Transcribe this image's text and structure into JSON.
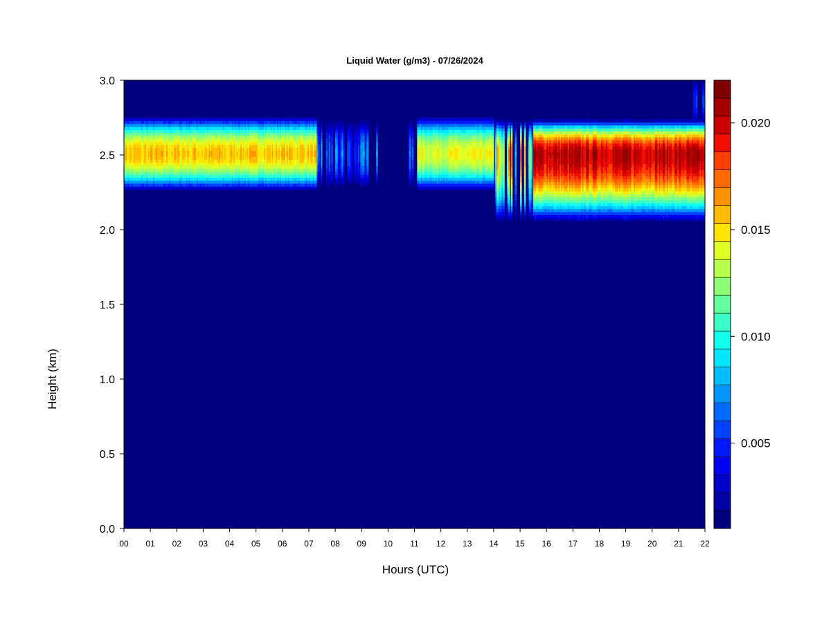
{
  "chart_data": {
    "type": "heatmap",
    "title": "Liquid Water (g/m3) - 07/26/2024",
    "xlabel": "Hours (UTC)",
    "ylabel": "Height (km)",
    "xlim": [
      0,
      22
    ],
    "ylim": [
      0.0,
      3.0
    ],
    "x_ticks": [
      "00",
      "01",
      "02",
      "03",
      "04",
      "05",
      "06",
      "07",
      "08",
      "09",
      "10",
      "11",
      "12",
      "13",
      "14",
      "15",
      "16",
      "17",
      "18",
      "19",
      "20",
      "21",
      "22"
    ],
    "y_ticks": [
      "0.0",
      "0.5",
      "1.0",
      "1.5",
      "2.0",
      "2.5",
      "3.0"
    ],
    "colorbar": {
      "range": [
        0.001,
        0.022
      ],
      "ticks": [
        0.005,
        0.01,
        0.015,
        0.02
      ],
      "tick_labels": [
        "0.005",
        "0.010",
        "0.015",
        "0.020"
      ],
      "levels": 21,
      "colors": [
        "#00007f",
        "#0000a6",
        "#0000cc",
        "#0000f2",
        "#0019ff",
        "#0042ff",
        "#006bff",
        "#0095ff",
        "#00beff",
        "#00e8ff",
        "#12fff0",
        "#3bffc7",
        "#64ff9e",
        "#8dff75",
        "#b7ff4b",
        "#e0ff22",
        "#ffe500",
        "#ffbc00",
        "#ff9200",
        "#ff6900",
        "#ff3f00",
        "#f20d00",
        "#cc0000",
        "#a50000",
        "#7f0000"
      ]
    },
    "cloud_layers": [
      {
        "hour_start": 0.0,
        "hour_end": 7.3,
        "base_km": 2.25,
        "top_km": 2.75,
        "peak_km": 2.5,
        "peak_value": 0.0165
      },
      {
        "hour_start": 7.3,
        "hour_end": 9.7,
        "base_km": 2.27,
        "top_km": 2.73,
        "peak_km": 2.5,
        "peak_value": 0.008,
        "intermittent": true
      },
      {
        "hour_start": 10.7,
        "hour_end": 11.1,
        "base_km": 2.27,
        "top_km": 2.73,
        "peak_km": 2.5,
        "peak_value": 0.007,
        "intermittent": true
      },
      {
        "hour_start": 11.1,
        "hour_end": 14.0,
        "base_km": 2.25,
        "top_km": 2.75,
        "peak_km": 2.5,
        "peak_value": 0.015
      },
      {
        "hour_start": 14.0,
        "hour_end": 15.5,
        "base_km": 2.04,
        "top_km": 2.73,
        "peak_km": 2.5,
        "peak_value": 0.019,
        "intermittent": true
      },
      {
        "hour_start": 15.5,
        "hour_end": 22.0,
        "base_km": 2.04,
        "top_km": 2.73,
        "peak_km": 2.5,
        "peak_value": 0.0215
      },
      {
        "hour_start": 21.5,
        "hour_end": 22.0,
        "base_km": 2.7,
        "top_km": 3.0,
        "peak_km": 2.85,
        "peak_value": 0.006,
        "intermittent": true
      }
    ],
    "background_value": 0.001,
    "grid": false
  }
}
